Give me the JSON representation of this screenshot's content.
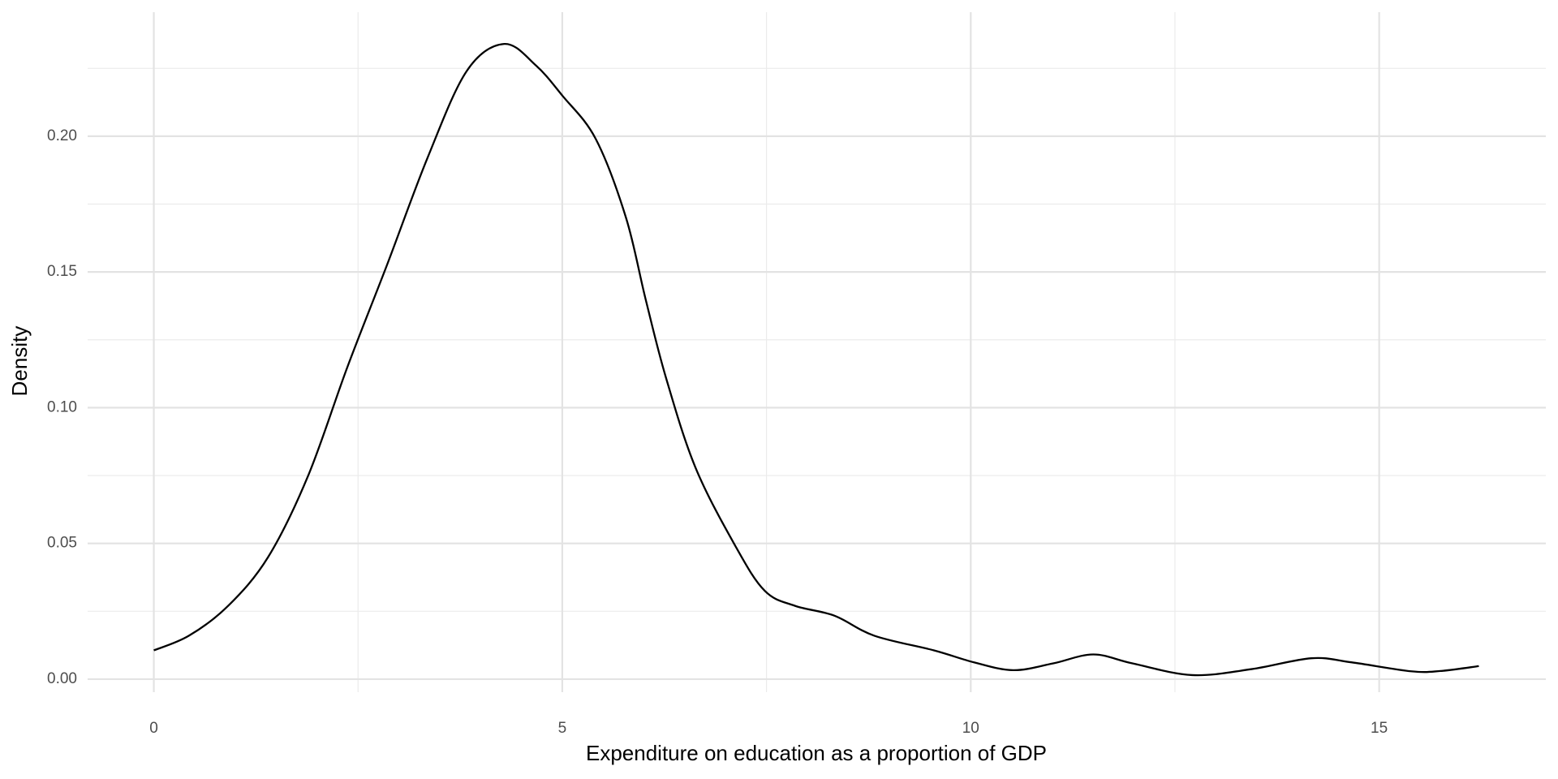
{
  "chart_data": {
    "type": "line",
    "x_label": "Expenditure on education as a proportion of GDP",
    "y_label": "Density",
    "x": [
      0,
      0.43,
      0.91,
      1.4,
      1.89,
      2.37,
      2.86,
      3.35,
      3.83,
      4.29,
      4.68,
      5.0,
      5.41,
      5.78,
      6.02,
      6.27,
      6.63,
      7.12,
      7.48,
      7.85,
      8.33,
      8.82,
      9.55,
      10.04,
      10.52,
      11.01,
      11.5,
      11.98,
      12.71,
      13.44,
      14.17,
      14.66,
      15.39,
      15.75,
      16.22
    ],
    "series": [
      {
        "name": "density",
        "color": "#000000",
        "values": [
          0.0106,
          0.016,
          0.027,
          0.045,
          0.075,
          0.115,
          0.153,
          0.192,
          0.224,
          0.234,
          0.226,
          0.215,
          0.199,
          0.17,
          0.14,
          0.111,
          0.078,
          0.049,
          0.0325,
          0.027,
          0.0234,
          0.016,
          0.0106,
          0.0062,
          0.0033,
          0.0058,
          0.0091,
          0.0058,
          0.0015,
          0.0037,
          0.0077,
          0.0062,
          0.0029,
          0.003,
          0.0048
        ]
      }
    ],
    "xlim": [
      -0.81,
      17.04
    ],
    "ylim": [
      -0.0048,
      0.2457
    ],
    "xticks": [
      0,
      5,
      10,
      15
    ],
    "yticks": [
      {
        "value": 0,
        "label": "0.00"
      },
      {
        "value": 0.05,
        "label": "0.05"
      },
      {
        "value": 0.1,
        "label": "0.10"
      },
      {
        "value": 0.15,
        "label": "0.15"
      },
      {
        "value": 0.2,
        "label": "0.20"
      }
    ],
    "x_minor_grid": [
      2.5,
      7.5,
      12.5
    ],
    "y_minor_grid": [
      0.025,
      0.075,
      0.125,
      0.175,
      0.225
    ],
    "grid": true
  }
}
